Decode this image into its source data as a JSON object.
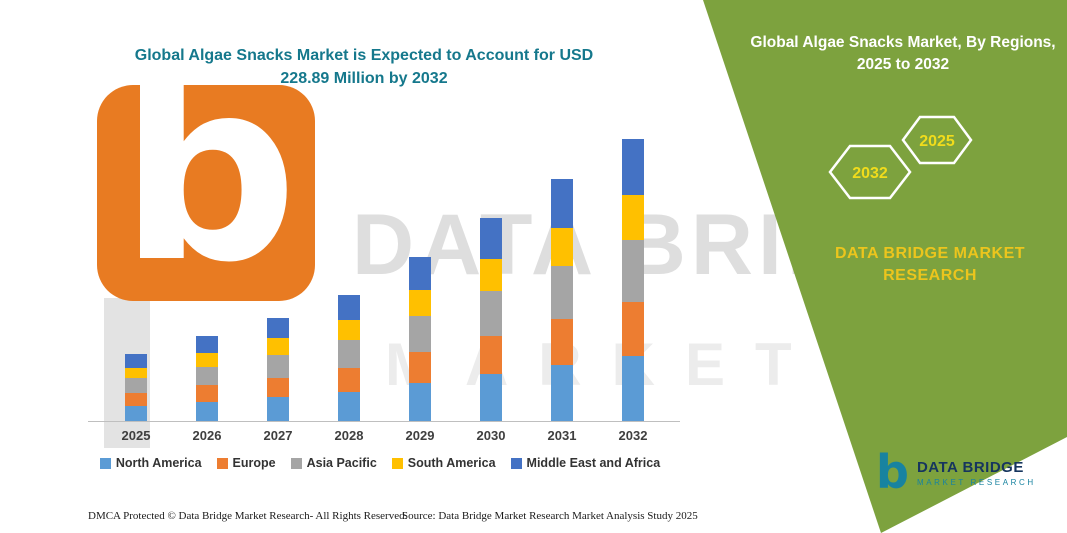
{
  "watermark": {
    "letter": "b",
    "line1": "DATA BRIDGE",
    "line2": "MARKET RESEARCH"
  },
  "chart_data": {
    "type": "bar",
    "stacked": true,
    "title": "Global Algae Snacks Market is Expected to Account for USD 228.89 Million by 2032",
    "categories": [
      "2025",
      "2026",
      "2027",
      "2028",
      "2029",
      "2030",
      "2031",
      "2032"
    ],
    "series": [
      {
        "name": "North America",
        "color": "#5B9BD5",
        "values": [
          12.4,
          15.8,
          19.3,
          23.6,
          30.6,
          37.8,
          45.1,
          52.6
        ]
      },
      {
        "name": "Europe",
        "color": "#ED7D31",
        "values": [
          10.3,
          13.0,
          15.9,
          19.5,
          25.3,
          31.2,
          37.2,
          43.5
        ]
      },
      {
        "name": "Asia Pacific",
        "color": "#A5A5A5",
        "values": [
          11.9,
          15.1,
          18.4,
          22.5,
          29.3,
          36.2,
          43.1,
          50.4
        ]
      },
      {
        "name": "South America",
        "color": "#FFC000",
        "values": [
          8.6,
          11.0,
          13.4,
          16.4,
          21.3,
          26.3,
          31.3,
          36.6
        ]
      },
      {
        "name": "Middle East and Africa",
        "color": "#4472C4",
        "values": [
          10.8,
          13.7,
          16.8,
          20.5,
          26.6,
          32.9,
          39.2,
          45.8
        ]
      }
    ],
    "totals": [
      54.0,
      68.6,
      83.8,
      102.5,
      133.1,
      164.4,
      195.9,
      228.89
    ],
    "xlabel": "",
    "ylabel": "",
    "ylim": [
      0,
      260
    ],
    "grid": false,
    "legend_position": "bottom",
    "units": "USD Million"
  },
  "panel": {
    "title": "Global Algae Snacks Market, By Regions, 2025 to 2032",
    "hex_2032": "2032",
    "hex_2025": "2025",
    "brand": "DATA BRIDGE MARKET RESEARCH",
    "accent_green": "#7DA23E",
    "accent_yellow": "#F1DC1C"
  },
  "logo": {
    "name": "DATA BRIDGE",
    "sub": "MARKET RESEARCH"
  },
  "footer": {
    "dmca": "DMCA Protected © Data Bridge Market Research-  All Rights Reserved.",
    "source": "Source: Data Bridge Market Research  Market Analysis Study 2025"
  }
}
